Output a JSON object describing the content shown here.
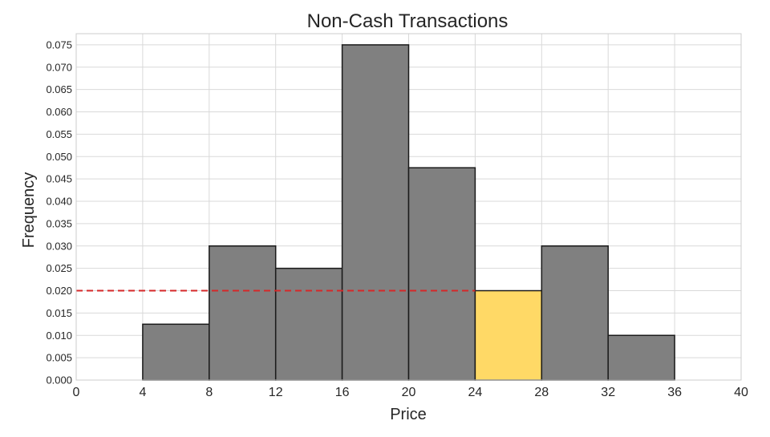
{
  "chart_data": {
    "type": "bar",
    "title": "Non-Cash Transactions",
    "xlabel": "Price",
    "ylabel": "Frequency",
    "xlim": [
      0,
      40
    ],
    "ylim": [
      0,
      0.0775
    ],
    "grid": true,
    "x_ticks": [
      "0",
      "4",
      "8",
      "12",
      "16",
      "20",
      "24",
      "28",
      "32",
      "36",
      "40"
    ],
    "y_ticks": [
      "0.000",
      "0.005",
      "0.010",
      "0.015",
      "0.020",
      "0.025",
      "0.030",
      "0.035",
      "0.040",
      "0.045",
      "0.050",
      "0.055",
      "0.060",
      "0.065",
      "0.070",
      "0.075"
    ],
    "bins": [
      {
        "x0": 4,
        "x1": 8,
        "value": 0.0125,
        "color": "#808080"
      },
      {
        "x0": 8,
        "x1": 12,
        "value": 0.03,
        "color": "#808080"
      },
      {
        "x0": 12,
        "x1": 16,
        "value": 0.025,
        "color": "#808080"
      },
      {
        "x0": 16,
        "x1": 20,
        "value": 0.075,
        "color": "#808080"
      },
      {
        "x0": 20,
        "x1": 24,
        "value": 0.0475,
        "color": "#808080"
      },
      {
        "x0": 24,
        "x1": 28,
        "value": 0.02,
        "color": "#FFD966"
      },
      {
        "x0": 28,
        "x1": 32,
        "value": 0.03,
        "color": "#808080"
      },
      {
        "x0": 32,
        "x1": 36,
        "value": 0.01,
        "color": "#808080"
      }
    ],
    "reference_line": {
      "y": 0.02,
      "x_from": 0,
      "x_to": 24,
      "color": "#D62728",
      "style": "dashed"
    }
  }
}
